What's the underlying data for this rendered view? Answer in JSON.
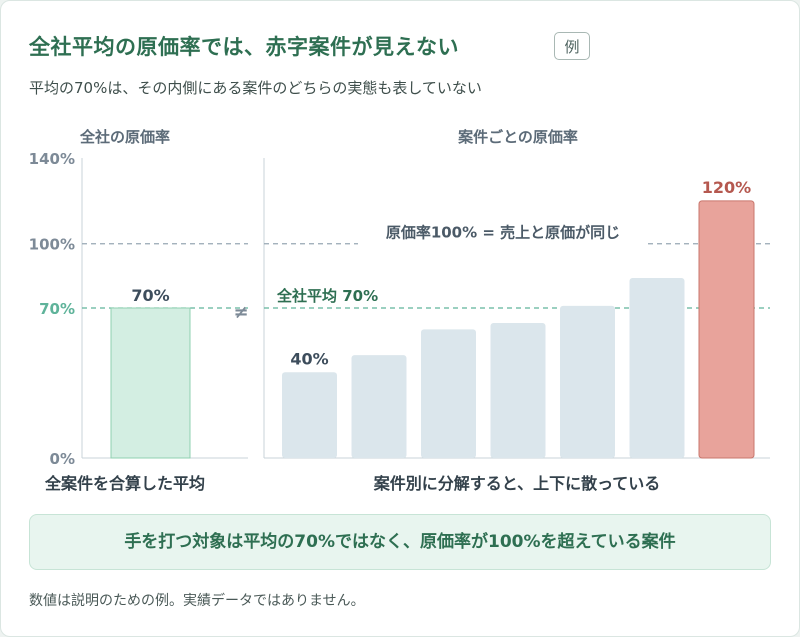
{
  "title": "全社平均の原価率では、赤字案件が見えない",
  "badge": "例",
  "subtitle": "平均の70%は、その内側にある案件のどちらの実態も表していない",
  "callout": "手を打つ対象は平均の70%ではなく、原価率が100%を超えている案件",
  "footnote": "数値は説明のための例。実績データではありません。",
  "not_equal_symbol": "≠",
  "colors": {
    "accent_green": "#2e6f52",
    "left_bar_fill": "#d3eee2",
    "left_bar_stroke": "#8fd0b0",
    "neutral_bar": "#dbe6ec",
    "loss_bar_fill": "#e8a39b",
    "loss_bar_stroke": "#c9776d",
    "loss_label": "#b5584f",
    "axis_text": "#7d8a97",
    "ref100_line": "#98a8b4",
    "avg_line": "#5fb39a"
  },
  "chart_data": [
    {
      "type": "bar",
      "title": "全社の原価率",
      "xlabel": "全案件を合算した平均",
      "categories": [
        ""
      ],
      "values": [
        70
      ],
      "value_labels": [
        "70%"
      ],
      "ylim": [
        0,
        140
      ],
      "yticks": [
        0,
        70,
        100,
        140
      ],
      "ytick_labels": [
        "0%",
        "70%",
        "100%",
        "140%"
      ],
      "reference_lines": [
        {
          "value": 100,
          "label": ""
        },
        {
          "value": 70,
          "label": ""
        }
      ]
    },
    {
      "type": "bar",
      "title": "案件ごとの原価率",
      "xlabel": "案件別に分解すると、上下に散っている",
      "categories": [
        "",
        "",
        "",
        "",
        "",
        "",
        ""
      ],
      "values": [
        40,
        48,
        60,
        63,
        71,
        84,
        120
      ],
      "value_labels": [
        "40%",
        "",
        "",
        "",
        "",
        "",
        "120%"
      ],
      "ylim": [
        0,
        140
      ],
      "reference_lines": [
        {
          "value": 100,
          "label": "原価率100% = 売上と原価が同じ"
        },
        {
          "value": 70,
          "label": "全社平均 70%"
        }
      ]
    }
  ]
}
